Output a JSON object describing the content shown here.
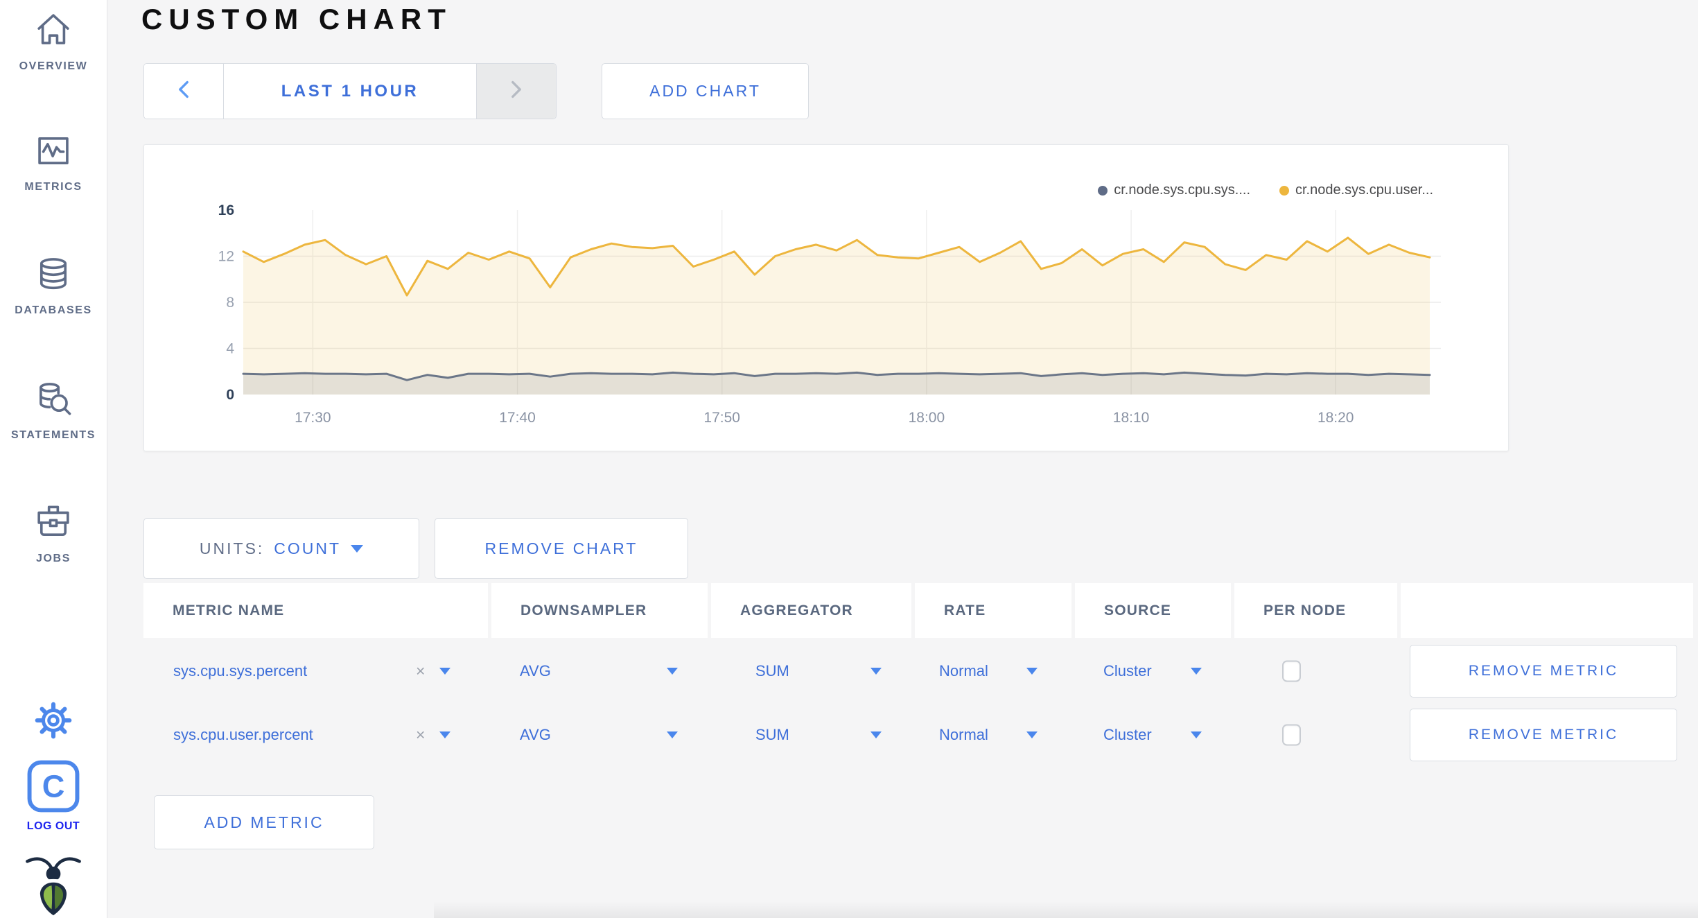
{
  "page": {
    "title": "CUSTOM CHART"
  },
  "colors": {
    "accent_blue": "#3E6FD9",
    "caret_blue": "#4A86EC",
    "icon_slate": "#5F6C87",
    "logout_blue": "#1D24EF",
    "series_sys_gray": "#6B7688",
    "series_user_yellow": "#EDB63E"
  },
  "sidebar": {
    "items": [
      {
        "label": "OVERVIEW",
        "icon": "home-icon"
      },
      {
        "label": "METRICS",
        "icon": "metrics-graph-icon"
      },
      {
        "label": "DATABASES",
        "icon": "database-icon"
      },
      {
        "label": "STATEMENTS",
        "icon": "database-search-icon"
      },
      {
        "label": "JOBS",
        "icon": "briefcase-icon"
      }
    ],
    "settings_icon": "gear-icon",
    "logout_icon": "cockroach-c-logo-icon",
    "logout_label": "LOG OUT",
    "brand_icon": "cockroach-bug-logo-icon"
  },
  "toolbar": {
    "prev_icon": "chevron-left-icon",
    "next_icon": "chevron-right-icon",
    "time_range": "LAST 1 HOUR",
    "add_chart": "ADD CHART"
  },
  "units_bar": {
    "units_label": "UNITS:",
    "units_value": "COUNT",
    "remove_chart": "REMOVE CHART"
  },
  "table": {
    "headers": [
      "METRIC NAME",
      "DOWNSAMPLER",
      "AGGREGATOR",
      "RATE",
      "SOURCE",
      "PER NODE"
    ],
    "clear_label": "×",
    "rows": [
      {
        "metric_name": "sys.cpu.sys.percent",
        "downsampler": "AVG",
        "aggregator": "SUM",
        "rate": "Normal",
        "source": "Cluster",
        "per_node_checked": false,
        "remove_label": "REMOVE METRIC"
      },
      {
        "metric_name": "sys.cpu.user.percent",
        "downsampler": "AVG",
        "aggregator": "SUM",
        "rate": "Normal",
        "source": "Cluster",
        "per_node_checked": false,
        "remove_label": "REMOVE METRIC"
      }
    ],
    "add_metric": "ADD METRIC"
  },
  "chart_data": {
    "type": "line",
    "title": "",
    "xlabel": "",
    "ylabel": "",
    "ylim": [
      0,
      16
    ],
    "y_ticks": [
      16,
      12,
      8,
      4,
      0
    ],
    "y_strong": [
      16,
      0
    ],
    "grid_y": [
      4,
      8,
      12
    ],
    "x_ticks": [
      "17:30",
      "17:40",
      "17:50",
      "18:00",
      "18:10",
      "18:20"
    ],
    "tick_minutes": [
      3.4,
      13.4,
      23.4,
      33.4,
      43.4,
      53.4
    ],
    "x_range": [
      0,
      58
    ],
    "minutes_per_point": 1,
    "legend_position": "top-right",
    "grid": true,
    "series": [
      {
        "name": "cr.node.sys.cpu.sys....",
        "color": "#6B7688",
        "dot_color": "#5F6C87",
        "fill": "rgba(95,108,135,0.15)",
        "values": [
          1.8,
          1.75,
          1.8,
          1.85,
          1.8,
          1.8,
          1.75,
          1.8,
          1.25,
          1.7,
          1.45,
          1.8,
          1.8,
          1.75,
          1.8,
          1.55,
          1.8,
          1.85,
          1.8,
          1.8,
          1.75,
          1.9,
          1.8,
          1.75,
          1.85,
          1.6,
          1.8,
          1.8,
          1.85,
          1.8,
          1.9,
          1.7,
          1.8,
          1.8,
          1.85,
          1.8,
          1.75,
          1.8,
          1.85,
          1.6,
          1.75,
          1.85,
          1.7,
          1.8,
          1.85,
          1.75,
          1.9,
          1.8,
          1.7,
          1.65,
          1.8,
          1.75,
          1.85,
          1.8,
          1.8,
          1.7,
          1.8,
          1.75,
          1.7
        ]
      },
      {
        "name": "cr.node.sys.cpu.user...",
        "color": "#EDB63E",
        "dot_color": "#EDB63E",
        "fill": "rgba(237,182,62,0.14)",
        "values": [
          12.4,
          11.5,
          12.2,
          13.0,
          13.4,
          12.1,
          11.3,
          12.0,
          8.6,
          11.6,
          10.9,
          12.3,
          11.7,
          12.4,
          11.8,
          9.3,
          11.9,
          12.6,
          13.1,
          12.8,
          12.7,
          12.9,
          11.1,
          11.7,
          12.4,
          10.4,
          12.0,
          12.6,
          13.0,
          12.5,
          13.4,
          12.1,
          11.9,
          11.8,
          12.3,
          12.8,
          11.5,
          12.3,
          13.3,
          10.9,
          11.4,
          12.6,
          11.2,
          12.2,
          12.6,
          11.5,
          13.2,
          12.8,
          11.3,
          10.8,
          12.1,
          11.7,
          13.3,
          12.4,
          13.6,
          12.2,
          13.0,
          12.3,
          11.9
        ]
      }
    ]
  }
}
